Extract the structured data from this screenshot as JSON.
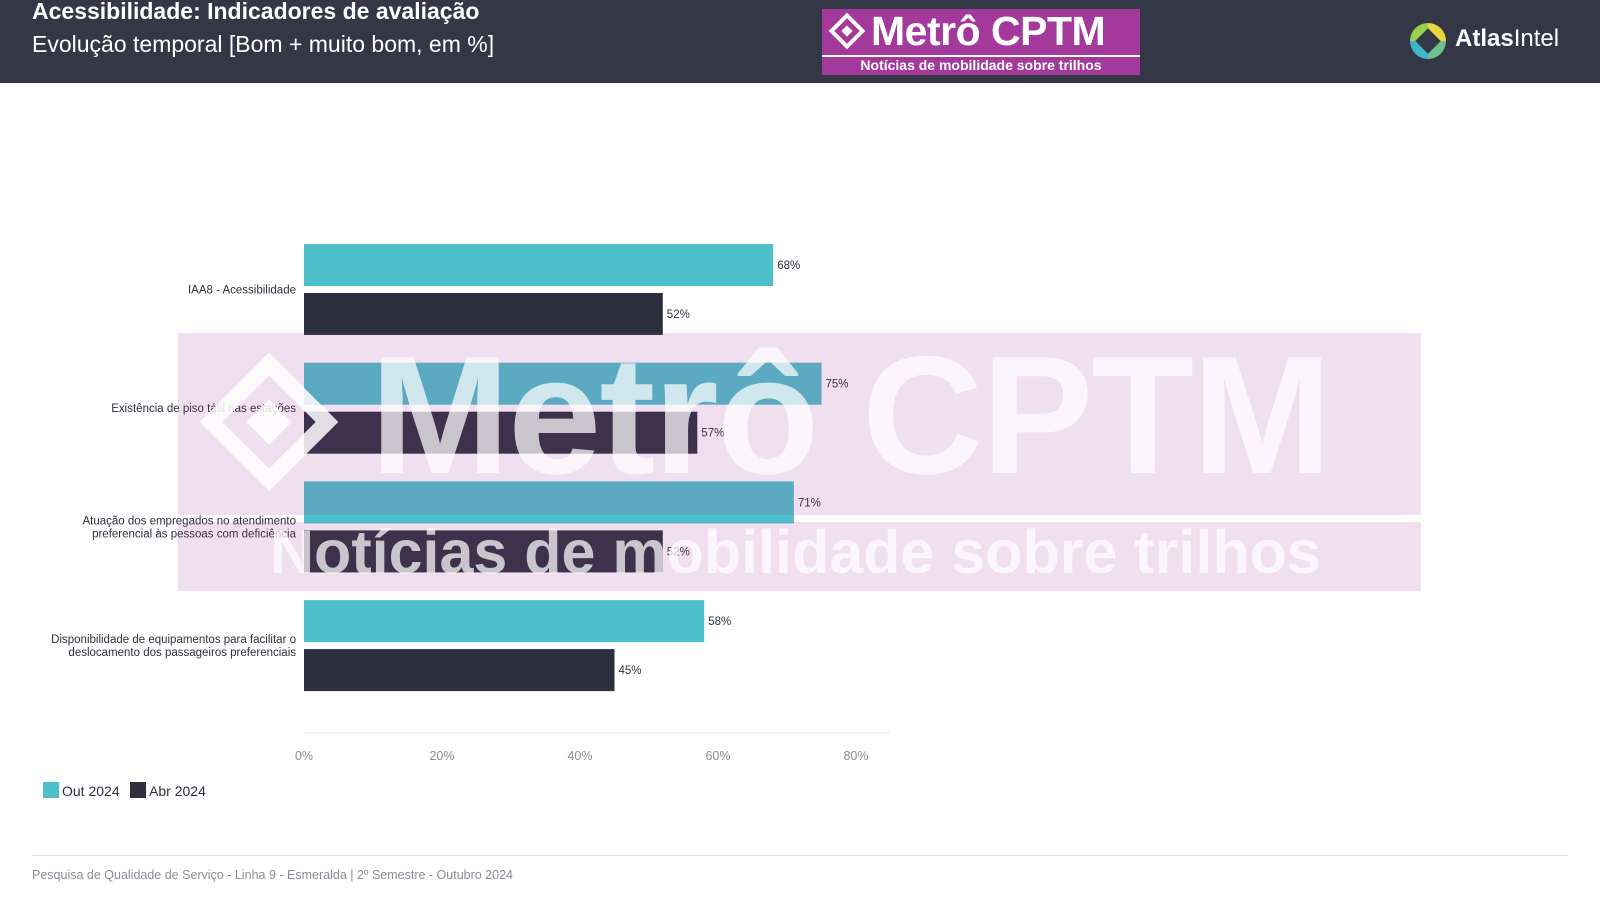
{
  "header": {
    "title": "Acessibilidade: Indicadores de avaliação",
    "subtitle": "Evolução temporal [Bom + muito bom, em %]"
  },
  "logos": {
    "metro_cptm": {
      "brand": "Metrô CPTM",
      "tagline": "Notícias de mobilidade sobre trilhos"
    },
    "atlas": {
      "part1": "Atlas",
      "part2": "Intel"
    }
  },
  "watermark": {
    "brand": "Metrô CPTM",
    "tagline": "Notícias de mobilidade sobre trilhos"
  },
  "chart_data": {
    "type": "bar",
    "orientation": "horizontal",
    "categories": [
      [
        "IAA8 - Acessibilidade"
      ],
      [
        "Existência de piso tátil nas estações"
      ],
      [
        "Atuação dos empregados no atendimento",
        "preferencial às pessoas com deficiência"
      ],
      [
        "Disponibilidade de equipamentos para facilitar o",
        "deslocamento dos passageiros preferenciais"
      ]
    ],
    "series": [
      {
        "name": "Out 2024",
        "color": "#4ec0c9",
        "values": [
          68,
          75,
          71,
          58
        ]
      },
      {
        "name": "Abr 2024",
        "color": "#2c303c",
        "values": [
          52,
          57,
          52,
          45
        ]
      }
    ],
    "value_suffix": "%",
    "xlim": [
      0,
      85
    ],
    "x_ticks": [
      0,
      20,
      40,
      60,
      80
    ],
    "x_tick_labels": [
      "0%",
      "20%",
      "40%",
      "60%",
      "80%"
    ],
    "grid": false,
    "legend_position": "bottom-left"
  },
  "footer": {
    "text": "Pesquisa de Qualidade de Serviço - Linha 9 - Esmeralda | 2º Semestre - Outubro 2024"
  }
}
